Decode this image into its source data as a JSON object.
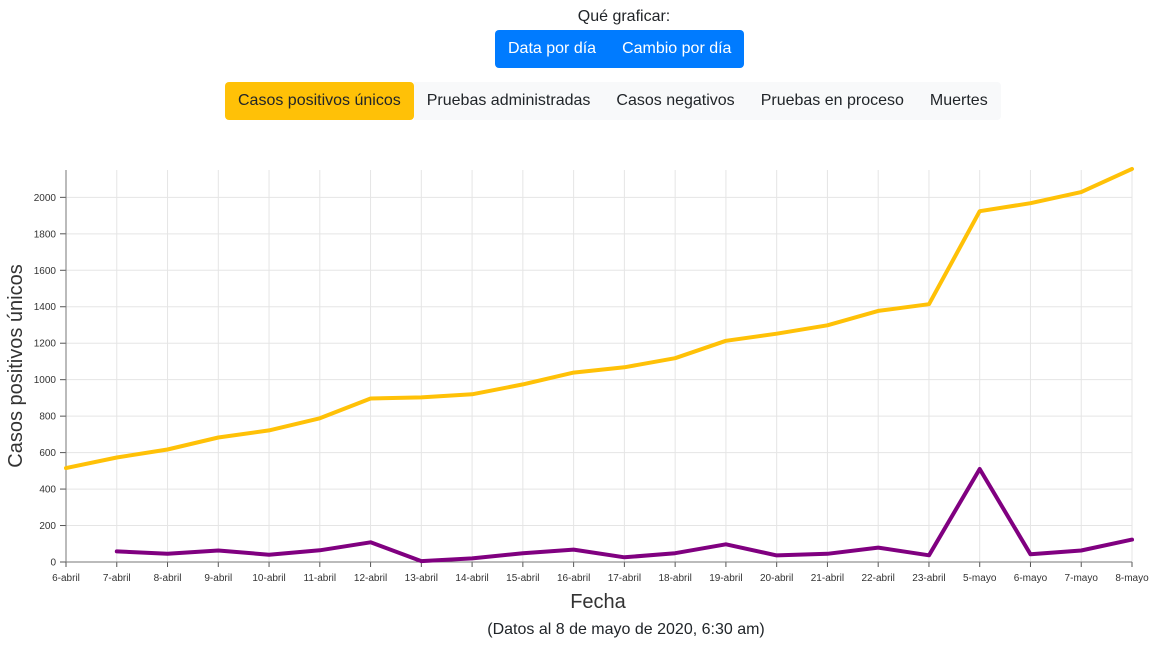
{
  "controls": {
    "prompt": "Qué graficar:",
    "mode_buttons": [
      "Data por día",
      "Cambio por día"
    ],
    "metric_buttons": [
      "Casos positivos únicos",
      "Pruebas administradas",
      "Casos negativos",
      "Pruebas en proceso",
      "Muertes"
    ],
    "active_metric": "Casos positivos únicos",
    "colors": {
      "primary": "#007bff",
      "active": "#ffc107",
      "inactive": "#f8f9fa"
    }
  },
  "caption": "(Datos al 8 de mayo de 2020, 6:30 am)",
  "chart_data": {
    "type": "line",
    "xlabel": "Fecha",
    "ylabel": "Casos positivos únicos",
    "ylim": [
      0,
      2150
    ],
    "yticks": [
      0,
      200,
      400,
      600,
      800,
      1000,
      1200,
      1400,
      1600,
      1800,
      2000
    ],
    "grid": true,
    "categories": [
      "6-abril",
      "7-abril",
      "8-abril",
      "9-abril",
      "10-abril",
      "11-abril",
      "12-abril",
      "13-abril",
      "14-abril",
      "15-abril",
      "16-abril",
      "17-abril",
      "18-abril",
      "19-abril",
      "20-abril",
      "21-abril",
      "22-abril",
      "23-abril",
      "5-mayo",
      "6-mayo",
      "7-mayo",
      "8-mayo"
    ],
    "series": [
      {
        "color": "#ffc107",
        "values": [
          515,
          573,
          617,
          683,
          722,
          788,
          897,
          903,
          920,
          974,
          1039,
          1068,
          1118,
          1213,
          1252,
          1298,
          1377,
          1414,
          1924,
          1968,
          2029,
          2156
        ]
      },
      {
        "color": "#800080",
        "values": [
          null,
          58,
          45,
          63,
          40,
          64,
          108,
          5,
          20,
          48,
          68,
          26,
          48,
          97,
          36,
          45,
          79,
          37,
          510,
          42,
          63,
          123
        ]
      }
    ]
  }
}
